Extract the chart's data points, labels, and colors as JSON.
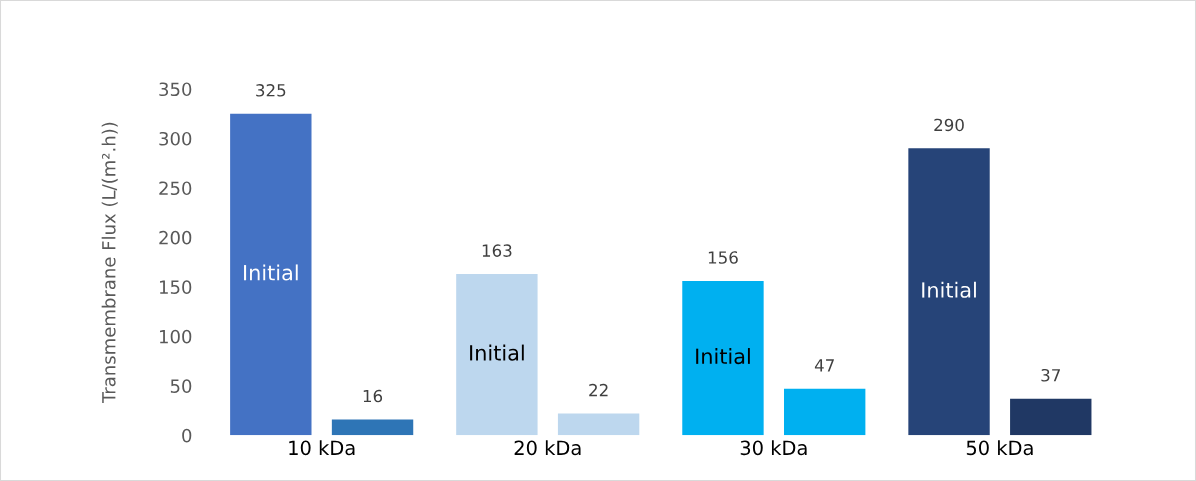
{
  "chart_data": {
    "type": "bar",
    "ylabel": "Transmembrane Flux (L/(m².h))",
    "categories": [
      "10 kDa",
      "20 kDa",
      "30 kDa",
      "50 kDa"
    ],
    "series": [
      {
        "name": "Initial",
        "colors": [
          "#4472c4",
          "#bdd7ee",
          "#00b0f0",
          "#264478"
        ],
        "values": [
          325,
          163,
          156,
          290
        ]
      },
      {
        "colors": [
          "#2e75b6",
          "#bdd7ee",
          "#00b0f0",
          "#203864"
        ],
        "values": [
          16,
          22,
          47,
          37
        ]
      }
    ],
    "ylim": [
      0,
      350
    ],
    "yticks": [
      0,
      50,
      100,
      150,
      200,
      250,
      300,
      350
    ],
    "data_labels": true,
    "grid": false,
    "legend": false
  }
}
